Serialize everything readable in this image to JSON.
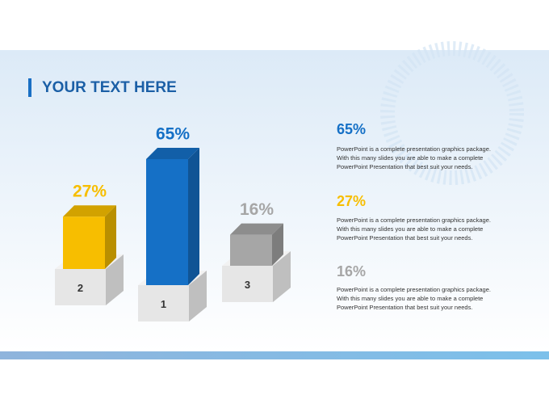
{
  "title": "YOUR TEXT HERE",
  "chart_data": {
    "type": "bar",
    "categories": [
      "2",
      "1",
      "3"
    ],
    "values": [
      27,
      65,
      16
    ],
    "value_labels": [
      "27%",
      "65%",
      "16%"
    ],
    "colors": [
      "#f7be00",
      "#1570c6",
      "#a6a6a6"
    ]
  },
  "descriptions": [
    [
      "PowerPoint is a complete presentation graphics package.",
      "With this many slides you are able to make a complete",
      "PowerPoint Presentation that best suit your needs."
    ],
    [
      "PowerPoint is a complete presentation graphics package.",
      "With this many slides you are able to make a complete",
      "PowerPoint Presentation that best suit your needs."
    ],
    [
      "PowerPoint is a complete presentation graphics package.",
      "With this many slides you are able to make a complete",
      "PowerPoint Presentation that best suit your needs."
    ]
  ]
}
